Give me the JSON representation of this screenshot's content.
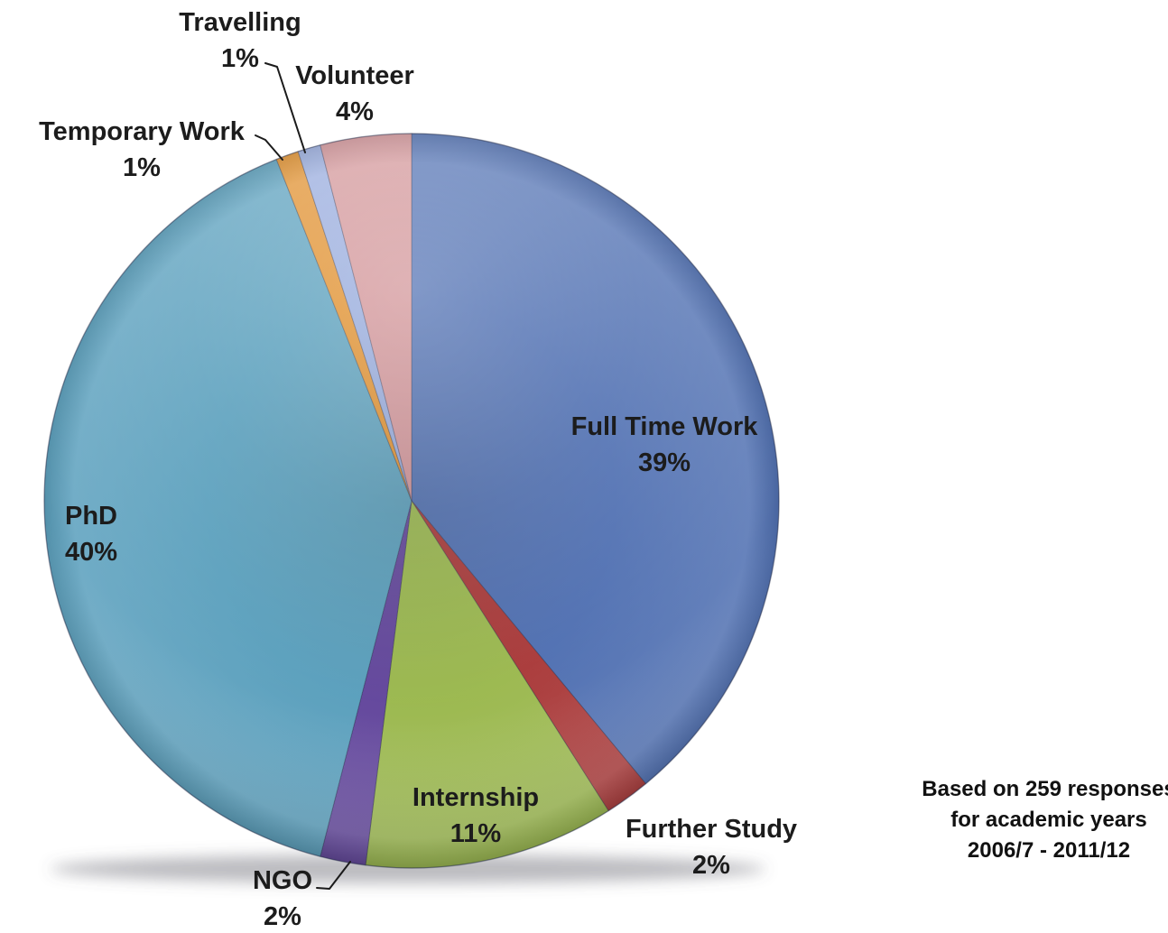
{
  "chart_data": {
    "type": "pie",
    "title": "",
    "unit": "%",
    "direction": "clockwise",
    "start_angle_deg": 0,
    "legend": "none",
    "slices": [
      {
        "name": "Full Time Work",
        "value": 39,
        "pct_label": "39%",
        "color": "#5070B2"
      },
      {
        "name": "Further Study",
        "value": 2,
        "pct_label": "2%",
        "color": "#AA3B3B"
      },
      {
        "name": "Internship",
        "value": 11,
        "pct_label": "11%",
        "color": "#9CB950"
      },
      {
        "name": "NGO",
        "value": 2,
        "pct_label": "2%",
        "color": "#64489D"
      },
      {
        "name": "PhD",
        "value": 40,
        "pct_label": "40%",
        "color": "#5BA0BD"
      },
      {
        "name": "Temporary Work",
        "value": 1,
        "pct_label": "1%",
        "color": "#E0902E"
      },
      {
        "name": "Travelling",
        "value": 1,
        "pct_label": "1%",
        "color": "#96AADC"
      },
      {
        "name": "Volunteer",
        "value": 4,
        "pct_label": "4%",
        "color": "#D29498"
      }
    ],
    "note": {
      "line1": "Based on 259 responses",
      "line2": "for academic years",
      "line3": "2006/7 - 2011/12"
    },
    "text_color": "#1c1c1c"
  }
}
